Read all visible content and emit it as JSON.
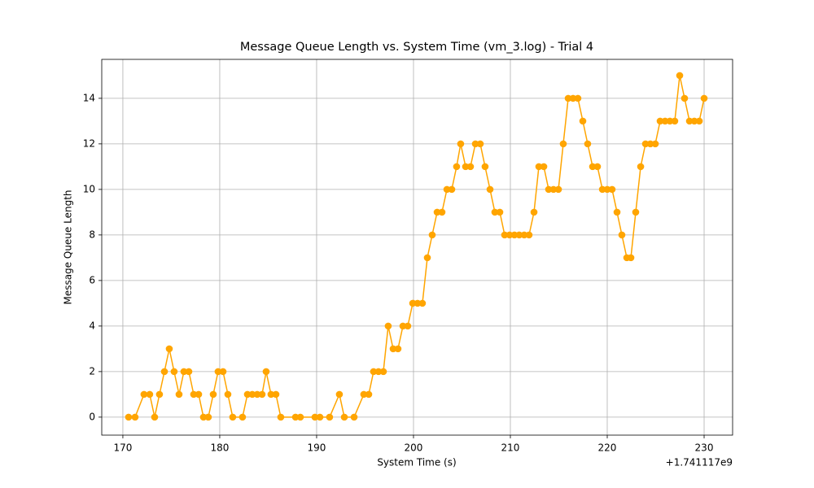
{
  "chart_data": {
    "type": "line",
    "title": "Message Queue Length vs. System Time (vm_3.log) - Trial 4",
    "x_label": "System Time (s)",
    "y_label": "Message Queue Length",
    "x_offset_label": "+1.741117e9",
    "color": "#ffa500",
    "grid": true,
    "xlim": [
      167.82,
      232.94
    ],
    "ylim": [
      -0.79,
      15.71
    ],
    "xticks": [
      170,
      180,
      190,
      200,
      210,
      220,
      230
    ],
    "yticks": [
      0,
      2,
      4,
      6,
      8,
      10,
      12,
      14
    ],
    "x": [
      170.59,
      171.26,
      172.18,
      172.77,
      173.28,
      173.78,
      174.29,
      174.79,
      175.29,
      175.8,
      176.3,
      176.81,
      177.31,
      177.82,
      178.32,
      178.82,
      179.33,
      179.83,
      180.34,
      180.84,
      181.34,
      182.35,
      182.86,
      183.36,
      183.87,
      184.37,
      184.79,
      185.29,
      185.8,
      186.3,
      187.82,
      188.32,
      189.83,
      190.34,
      191.34,
      192.35,
      192.86,
      193.87,
      194.87,
      195.38,
      195.88,
      196.39,
      196.89,
      197.39,
      197.9,
      198.4,
      198.91,
      199.41,
      199.92,
      200.42,
      200.92,
      201.43,
      201.93,
      202.44,
      202.94,
      203.45,
      203.95,
      204.45,
      204.87,
      205.38,
      205.88,
      206.39,
      206.89,
      207.39,
      207.9,
      208.4,
      208.91,
      209.41,
      209.92,
      210.42,
      210.92,
      211.43,
      211.93,
      212.44,
      212.94,
      213.45,
      213.95,
      214.45,
      214.96,
      215.46,
      215.97,
      216.47,
      216.97,
      217.48,
      217.98,
      218.49,
      218.99,
      219.5,
      220.0,
      220.5,
      221.01,
      221.51,
      222.02,
      222.44,
      222.94,
      223.45,
      223.95,
      224.45,
      224.96,
      225.46,
      225.97,
      226.47,
      226.97,
      227.48,
      227.98,
      228.49,
      228.99,
      229.5,
      230.0
    ],
    "values": [
      0,
      0,
      1,
      1,
      0,
      1,
      2,
      3,
      2,
      1,
      2,
      2,
      1,
      1,
      0,
      0,
      1,
      2,
      2,
      1,
      0,
      0,
      1,
      1,
      1,
      1,
      2,
      1,
      1,
      0,
      0,
      0,
      0,
      0,
      0,
      1,
      0,
      0,
      1,
      1,
      2,
      2,
      2,
      4,
      3,
      3,
      4,
      4,
      5,
      5,
      5,
      7,
      8,
      9,
      9,
      10,
      10,
      11,
      12,
      11,
      11,
      12,
      12,
      11,
      10,
      9,
      9,
      8,
      8,
      8,
      8,
      8,
      8,
      9,
      11,
      11,
      10,
      10,
      10,
      12,
      14,
      14,
      14,
      13,
      12,
      11,
      11,
      10,
      10,
      10,
      9,
      8,
      7,
      7,
      9,
      11,
      12,
      12,
      12,
      13,
      13,
      13,
      13,
      15,
      14,
      13,
      13,
      13,
      14
    ]
  }
}
